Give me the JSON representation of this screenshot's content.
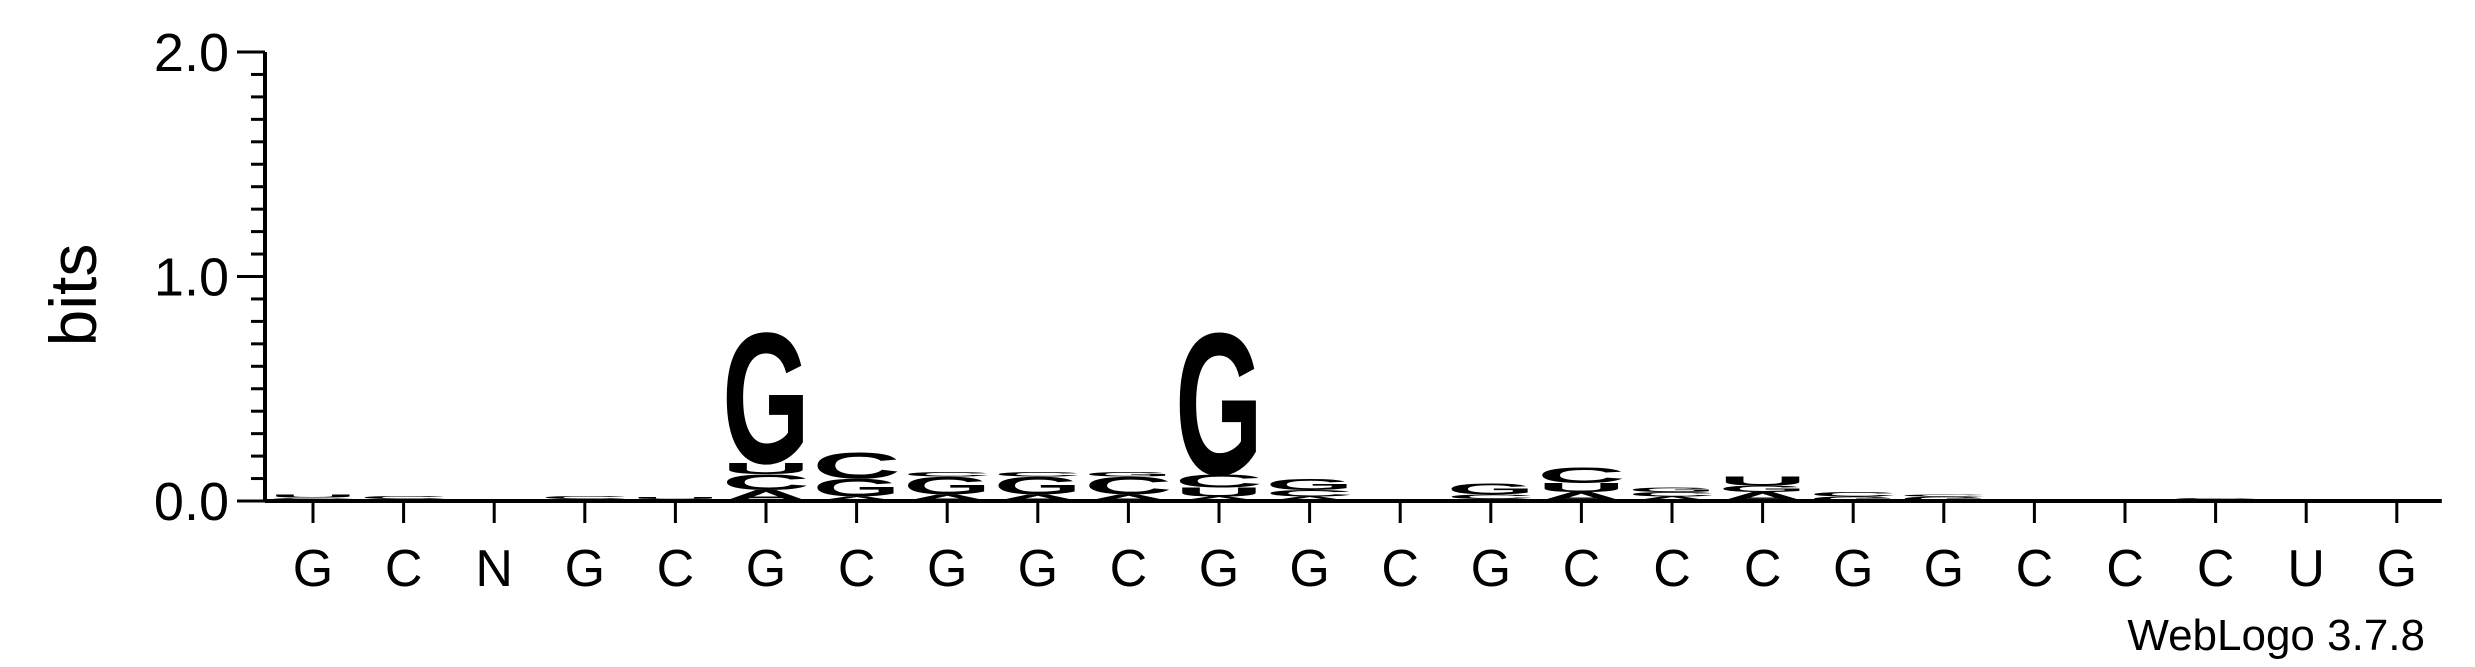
{
  "chart_data": {
    "type": "sequence-logo",
    "title": "",
    "xlabel": "",
    "ylabel": "bits",
    "ylim": [
      0,
      2
    ],
    "yticks": [
      "0.0",
      "1.0",
      "2.0"
    ],
    "positions": [
      "G",
      "C",
      "N",
      "G",
      "C",
      "G",
      "C",
      "G",
      "G",
      "C",
      "G",
      "G",
      "C",
      "G",
      "C",
      "C",
      "C",
      "G",
      "G",
      "C",
      "C",
      "C",
      "U",
      "G"
    ],
    "colors": {
      "G": "#0000ff",
      "C": "#0000ff",
      "A": "#ff8c00",
      "U": "#ff8c00"
    },
    "stacks": [
      [
        {
          "l": "A",
          "h": 0.005
        },
        {
          "l": "C",
          "h": 0.01
        },
        {
          "l": "U",
          "h": 0.015
        }
      ],
      [
        {
          "l": "G",
          "h": 0.01
        },
        {
          "l": "C",
          "h": 0.015
        }
      ],
      [],
      [
        {
          "l": "G",
          "h": 0.01
        },
        {
          "l": "C",
          "h": 0.015
        }
      ],
      [
        {
          "l": "A",
          "h": 0.01
        },
        {
          "l": "U",
          "h": 0.01
        }
      ],
      [
        {
          "l": "A",
          "h": 0.05
        },
        {
          "l": "C",
          "h": 0.07
        },
        {
          "l": "U",
          "h": 0.05
        },
        {
          "l": "G",
          "h": 0.6
        }
      ],
      [
        {
          "l": "A",
          "h": 0.02
        },
        {
          "l": "G",
          "h": 0.08
        },
        {
          "l": "C",
          "h": 0.12
        }
      ],
      [
        {
          "l": "A",
          "h": 0.03
        },
        {
          "l": "G",
          "h": 0.08
        },
        {
          "l": "C",
          "h": 0.02
        }
      ],
      [
        {
          "l": "A",
          "h": 0.03
        },
        {
          "l": "G",
          "h": 0.08
        },
        {
          "l": "C",
          "h": 0.02
        }
      ],
      [
        {
          "l": "A",
          "h": 0.03
        },
        {
          "l": "C",
          "h": 0.08
        },
        {
          "l": "G",
          "h": 0.02
        }
      ],
      [
        {
          "l": "A",
          "h": 0.02
        },
        {
          "l": "U",
          "h": 0.04
        },
        {
          "l": "C",
          "h": 0.06
        },
        {
          "l": "G",
          "h": 0.65
        }
      ],
      [
        {
          "l": "A",
          "h": 0.02
        },
        {
          "l": "C",
          "h": 0.03
        },
        {
          "l": "G",
          "h": 0.05
        }
      ],
      [
        {
          "l": "C",
          "h": 0.005
        }
      ],
      [
        {
          "l": "A",
          "h": 0.01
        },
        {
          "l": "C",
          "h": 0.02
        },
        {
          "l": "G",
          "h": 0.05
        }
      ],
      [
        {
          "l": "A",
          "h": 0.04
        },
        {
          "l": "U",
          "h": 0.04
        },
        {
          "l": "C",
          "h": 0.07
        }
      ],
      [
        {
          "l": "A",
          "h": 0.02
        },
        {
          "l": "C",
          "h": 0.02
        },
        {
          "l": "G",
          "h": 0.02
        }
      ],
      [
        {
          "l": "A",
          "h": 0.04
        },
        {
          "l": "G",
          "h": 0.03
        },
        {
          "l": "U",
          "h": 0.04
        }
      ],
      [
        {
          "l": "G",
          "h": 0.02
        },
        {
          "l": "C",
          "h": 0.02
        }
      ],
      [
        {
          "l": "G",
          "h": 0.02
        },
        {
          "l": "C",
          "h": 0.01
        }
      ],
      [],
      [
        {
          "l": "C",
          "h": 0.01
        }
      ],
      [
        {
          "l": "A",
          "h": 0.005
        },
        {
          "l": "C",
          "h": 0.01
        }
      ],
      [],
      []
    ]
  },
  "footer": {
    "credit": "WebLogo 3.7.8"
  }
}
